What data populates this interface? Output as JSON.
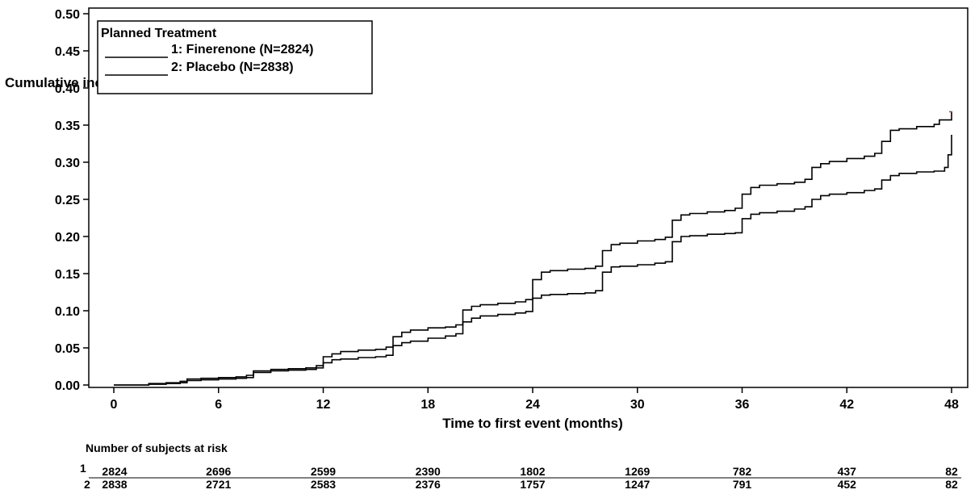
{
  "chart_data": {
    "type": "line",
    "title": "",
    "xlabel": "Time to first event (months)",
    "ylabel": "Cumulative incidence probability",
    "xlim": [
      0,
      48
    ],
    "ylim": [
      0,
      0.5
    ],
    "x_ticks": [
      "0",
      "6",
      "12",
      "18",
      "24",
      "30",
      "36",
      "42",
      "48"
    ],
    "y_ticks": [
      "0.00",
      "0.05",
      "0.10",
      "0.15",
      "0.20",
      "0.25",
      "0.30",
      "0.35",
      "0.40",
      "0.45",
      "0.50"
    ],
    "legend": {
      "title": "Planned Treatment",
      "placement": "top-left",
      "entries": [
        "1: Finerenone (N=2824)",
        "2: Placebo (N=2838)"
      ]
    },
    "series": [
      {
        "name": "1: Finerenone (N=2824)",
        "x": [
          0,
          1,
          2,
          3,
          3.8,
          4.2,
          5,
          6,
          7,
          7.6,
          8,
          9,
          10,
          11,
          11.6,
          12,
          12.5,
          13,
          14,
          15,
          15.6,
          16,
          16.5,
          17,
          18,
          19,
          19.6,
          20,
          20.5,
          21,
          22,
          23,
          23.6,
          24,
          24.5,
          25,
          26,
          27,
          27.6,
          28,
          28.5,
          29,
          30,
          31,
          31.6,
          32,
          32.5,
          33,
          34,
          35,
          35.6,
          36,
          36.5,
          37,
          38,
          39,
          39.6,
          40,
          40.5,
          41,
          42,
          43,
          43.6,
          44,
          44.5,
          45,
          46,
          47,
          47.6,
          47.8,
          48
        ],
        "y": [
          0,
          0,
          0.001,
          0.002,
          0.003,
          0.006,
          0.007,
          0.008,
          0.009,
          0.01,
          0.017,
          0.019,
          0.02,
          0.021,
          0.023,
          0.03,
          0.034,
          0.035,
          0.037,
          0.038,
          0.04,
          0.053,
          0.057,
          0.059,
          0.063,
          0.066,
          0.069,
          0.085,
          0.09,
          0.093,
          0.095,
          0.097,
          0.099,
          0.117,
          0.121,
          0.122,
          0.123,
          0.124,
          0.127,
          0.152,
          0.159,
          0.16,
          0.162,
          0.164,
          0.166,
          0.193,
          0.2,
          0.201,
          0.203,
          0.204,
          0.205,
          0.224,
          0.23,
          0.232,
          0.234,
          0.237,
          0.24,
          0.25,
          0.255,
          0.257,
          0.259,
          0.262,
          0.264,
          0.276,
          0.282,
          0.285,
          0.287,
          0.288,
          0.293,
          0.31,
          0.337
        ]
      },
      {
        "name": "2: Placebo (N=2838)",
        "x": [
          0,
          1,
          2,
          3,
          3.8,
          4.2,
          5,
          6,
          7,
          7.6,
          8,
          9,
          10,
          11,
          11.6,
          12,
          12.5,
          13,
          14,
          15,
          15.6,
          16,
          16.5,
          17,
          18,
          19,
          19.6,
          20,
          20.5,
          21,
          22,
          23,
          23.6,
          24,
          24.5,
          25,
          26,
          27,
          27.6,
          28,
          28.5,
          29,
          30,
          31,
          31.6,
          32,
          32.5,
          33,
          34,
          35,
          35.6,
          36,
          36.5,
          37,
          38,
          39,
          39.6,
          40,
          40.5,
          41,
          42,
          43,
          43.6,
          44,
          44.5,
          45,
          46,
          47,
          47.3,
          48
        ],
        "y": [
          0,
          0,
          0.002,
          0.003,
          0.005,
          0.008,
          0.009,
          0.01,
          0.011,
          0.013,
          0.019,
          0.021,
          0.022,
          0.023,
          0.026,
          0.038,
          0.042,
          0.045,
          0.047,
          0.048,
          0.051,
          0.065,
          0.071,
          0.074,
          0.077,
          0.078,
          0.081,
          0.101,
          0.106,
          0.108,
          0.11,
          0.112,
          0.115,
          0.142,
          0.152,
          0.154,
          0.156,
          0.157,
          0.16,
          0.181,
          0.189,
          0.191,
          0.194,
          0.196,
          0.199,
          0.222,
          0.229,
          0.231,
          0.233,
          0.235,
          0.238,
          0.257,
          0.266,
          0.269,
          0.271,
          0.273,
          0.277,
          0.293,
          0.298,
          0.301,
          0.305,
          0.308,
          0.312,
          0.328,
          0.343,
          0.345,
          0.348,
          0.351,
          0.357,
          0.368
        ]
      }
    ],
    "grid": false
  },
  "risk_table": {
    "title": "Number of subjects at risk",
    "rows": [
      {
        "label": "1",
        "values": [
          "2824",
          "2696",
          "2599",
          "2390",
          "1802",
          "1269",
          "782",
          "437",
          "82"
        ]
      },
      {
        "label": "2",
        "values": [
          "2838",
          "2721",
          "2583",
          "2376",
          "1757",
          "1247",
          "791",
          "452",
          "82"
        ]
      }
    ]
  }
}
